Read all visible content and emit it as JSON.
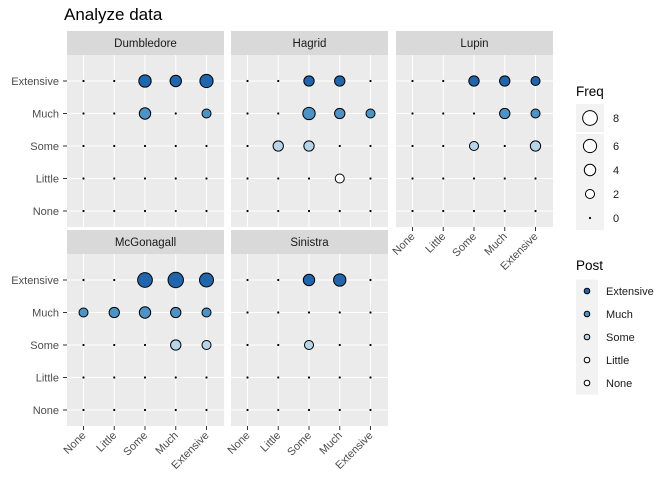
{
  "chart_data": {
    "type": "scatter",
    "title": "Analyze data",
    "xlabel": "",
    "ylabel": "",
    "x_categories": [
      "None",
      "Little",
      "Some",
      "Much",
      "Extensive"
    ],
    "y_categories": [
      "None",
      "Little",
      "Some",
      "Much",
      "Extensive"
    ],
    "facets": [
      {
        "name": "Dumbledore",
        "points": [
          {
            "x": "Some",
            "y": "Extensive",
            "freq": 5
          },
          {
            "x": "Much",
            "y": "Extensive",
            "freq": 4
          },
          {
            "x": "Extensive",
            "y": "Extensive",
            "freq": 6
          },
          {
            "x": "Some",
            "y": "Much",
            "freq": 4
          },
          {
            "x": "Extensive",
            "y": "Much",
            "freq": 2
          }
        ]
      },
      {
        "name": "Hagrid",
        "points": [
          {
            "x": "Some",
            "y": "Extensive",
            "freq": 3
          },
          {
            "x": "Much",
            "y": "Extensive",
            "freq": 3
          },
          {
            "x": "Some",
            "y": "Much",
            "freq": 5
          },
          {
            "x": "Much",
            "y": "Much",
            "freq": 3
          },
          {
            "x": "Extensive",
            "y": "Much",
            "freq": 2
          },
          {
            "x": "Little",
            "y": "Some",
            "freq": 3
          },
          {
            "x": "Some",
            "y": "Some",
            "freq": 3
          },
          {
            "x": "Much",
            "y": "Little",
            "freq": 2
          }
        ]
      },
      {
        "name": "Lupin",
        "points": [
          {
            "x": "Some",
            "y": "Extensive",
            "freq": 3
          },
          {
            "x": "Much",
            "y": "Extensive",
            "freq": 3
          },
          {
            "x": "Extensive",
            "y": "Extensive",
            "freq": 2
          },
          {
            "x": "Much",
            "y": "Much",
            "freq": 3
          },
          {
            "x": "Extensive",
            "y": "Much",
            "freq": 2
          },
          {
            "x": "Some",
            "y": "Some",
            "freq": 2
          },
          {
            "x": "Extensive",
            "y": "Some",
            "freq": 3
          }
        ]
      },
      {
        "name": "McGonagall",
        "points": [
          {
            "x": "Some",
            "y": "Extensive",
            "freq": 8
          },
          {
            "x": "Much",
            "y": "Extensive",
            "freq": 9
          },
          {
            "x": "Extensive",
            "y": "Extensive",
            "freq": 7
          },
          {
            "x": "None",
            "y": "Much",
            "freq": 2
          },
          {
            "x": "Little",
            "y": "Much",
            "freq": 3
          },
          {
            "x": "Some",
            "y": "Much",
            "freq": 4
          },
          {
            "x": "Much",
            "y": "Much",
            "freq": 3
          },
          {
            "x": "Extensive",
            "y": "Much",
            "freq": 2
          },
          {
            "x": "Much",
            "y": "Some",
            "freq": 3
          },
          {
            "x": "Extensive",
            "y": "Some",
            "freq": 2
          }
        ]
      },
      {
        "name": "Sinistra",
        "points": [
          {
            "x": "Some",
            "y": "Extensive",
            "freq": 4
          },
          {
            "x": "Much",
            "y": "Extensive",
            "freq": 5
          },
          {
            "x": "Some",
            "y": "Some",
            "freq": 2
          }
        ]
      }
    ],
    "legend": {
      "freq": {
        "title": "Freq",
        "breaks": [
          8,
          6,
          4,
          2,
          0
        ]
      },
      "post": {
        "title": "Post",
        "levels": [
          "Extensive",
          "Much",
          "Some",
          "Little",
          "None"
        ]
      }
    },
    "colors": {
      "Extensive": "#2166ac",
      "Much": "#4d93c6",
      "Some": "#b7d5ea",
      "Little": "#ffffff",
      "None": "#ffffff",
      "panel_bg": "#ebebeb",
      "strip_bg": "#d9d9d9",
      "grid": "#ffffff"
    },
    "grid": true,
    "legend_position": "right"
  }
}
